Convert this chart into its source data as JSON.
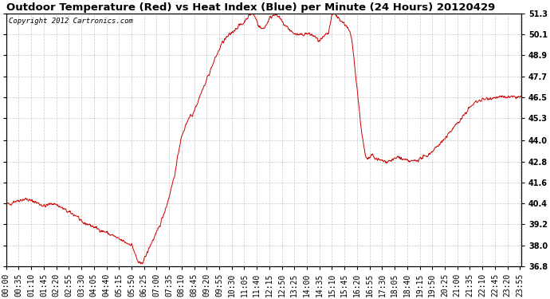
{
  "title": "Outdoor Temperature (Red) vs Heat Index (Blue) per Minute (24 Hours) 20120429",
  "copyright": "Copyright 2012 Cartronics.com",
  "ylim": [
    36.8,
    51.3
  ],
  "yticks": [
    36.8,
    38.0,
    39.2,
    40.4,
    41.6,
    42.8,
    44.0,
    45.3,
    46.5,
    47.7,
    48.9,
    50.1,
    51.3
  ],
  "ytick_labels": [
    "36.8",
    "38.0",
    "39.2",
    "40.4",
    "41.6",
    "42.8",
    "44.0",
    "45.3",
    "46.5",
    "47.7",
    "48.9",
    "50.1",
    "51.3"
  ],
  "line_color_temp": "#cc0000",
  "bg_color": "#ffffff",
  "grid_color": "#b0b0b0",
  "title_fontsize": 9.5,
  "copyright_fontsize": 6.5,
  "tick_fontsize": 7,
  "xtick_interval_minutes": 35,
  "total_minutes": 1440,
  "keypoints": [
    [
      0,
      40.4
    ],
    [
      10,
      40.35
    ],
    [
      20,
      40.5
    ],
    [
      30,
      40.55
    ],
    [
      40,
      40.6
    ],
    [
      55,
      40.65
    ],
    [
      70,
      40.55
    ],
    [
      80,
      40.5
    ],
    [
      90,
      40.4
    ],
    [
      100,
      40.3
    ],
    [
      110,
      40.25
    ],
    [
      120,
      40.35
    ],
    [
      130,
      40.4
    ],
    [
      140,
      40.35
    ],
    [
      150,
      40.2
    ],
    [
      160,
      40.1
    ],
    [
      170,
      39.95
    ],
    [
      180,
      39.85
    ],
    [
      190,
      39.75
    ],
    [
      200,
      39.65
    ],
    [
      210,
      39.3
    ],
    [
      220,
      39.25
    ],
    [
      230,
      39.2
    ],
    [
      240,
      39.1
    ],
    [
      250,
      39.0
    ],
    [
      260,
      38.9
    ],
    [
      270,
      38.8
    ],
    [
      280,
      38.75
    ],
    [
      290,
      38.6
    ],
    [
      300,
      38.55
    ],
    [
      310,
      38.4
    ],
    [
      320,
      38.3
    ],
    [
      330,
      38.2
    ],
    [
      340,
      38.1
    ],
    [
      350,
      38.05
    ],
    [
      355,
      37.8
    ],
    [
      360,
      37.5
    ],
    [
      365,
      37.2
    ],
    [
      370,
      37.0
    ],
    [
      375,
      36.9
    ],
    [
      380,
      37.0
    ],
    [
      385,
      37.2
    ],
    [
      390,
      37.4
    ],
    [
      395,
      37.6
    ],
    [
      400,
      37.9
    ],
    [
      410,
      38.3
    ],
    [
      420,
      38.7
    ],
    [
      430,
      39.2
    ],
    [
      440,
      39.8
    ],
    [
      450,
      40.4
    ],
    [
      460,
      41.2
    ],
    [
      470,
      42.0
    ],
    [
      475,
      42.5
    ],
    [
      480,
      43.2
    ],
    [
      485,
      43.8
    ],
    [
      490,
      44.2
    ],
    [
      495,
      44.5
    ],
    [
      500,
      44.8
    ],
    [
      505,
      45.1
    ],
    [
      510,
      45.3
    ],
    [
      515,
      45.5
    ],
    [
      520,
      45.4
    ],
    [
      525,
      45.8
    ],
    [
      530,
      46.0
    ],
    [
      535,
      46.2
    ],
    [
      540,
      46.5
    ],
    [
      545,
      46.8
    ],
    [
      550,
      47.0
    ],
    [
      555,
      47.2
    ],
    [
      560,
      47.5
    ],
    [
      565,
      47.8
    ],
    [
      570,
      48.0
    ],
    [
      575,
      48.3
    ],
    [
      580,
      48.5
    ],
    [
      585,
      48.8
    ],
    [
      590,
      49.0
    ],
    [
      595,
      49.2
    ],
    [
      600,
      49.5
    ],
    [
      610,
      49.8
    ],
    [
      620,
      50.0
    ],
    [
      630,
      50.2
    ],
    [
      640,
      50.4
    ],
    [
      650,
      50.6
    ],
    [
      660,
      50.7
    ],
    [
      665,
      50.8
    ],
    [
      670,
      51.0
    ],
    [
      675,
      51.1
    ],
    [
      680,
      51.2
    ],
    [
      685,
      51.3
    ],
    [
      690,
      51.25
    ],
    [
      695,
      51.1
    ],
    [
      700,
      50.9
    ],
    [
      705,
      50.6
    ],
    [
      710,
      50.5
    ],
    [
      715,
      50.4
    ],
    [
      720,
      50.5
    ],
    [
      725,
      50.6
    ],
    [
      730,
      50.8
    ],
    [
      735,
      51.0
    ],
    [
      740,
      51.1
    ],
    [
      745,
      51.2
    ],
    [
      750,
      51.3
    ],
    [
      755,
      51.2
    ],
    [
      760,
      51.1
    ],
    [
      765,
      51.0
    ],
    [
      770,
      50.85
    ],
    [
      775,
      50.7
    ],
    [
      780,
      50.6
    ],
    [
      785,
      50.5
    ],
    [
      790,
      50.4
    ],
    [
      795,
      50.3
    ],
    [
      800,
      50.2
    ],
    [
      810,
      50.1
    ],
    [
      820,
      50.05
    ],
    [
      830,
      50.1
    ],
    [
      840,
      50.15
    ],
    [
      850,
      50.1
    ],
    [
      855,
      50.05
    ],
    [
      860,
      50.0
    ],
    [
      865,
      49.9
    ],
    [
      870,
      49.8
    ],
    [
      875,
      49.7
    ],
    [
      880,
      49.8
    ],
    [
      885,
      49.9
    ],
    [
      890,
      50.0
    ],
    [
      895,
      50.1
    ],
    [
      900,
      50.15
    ],
    [
      910,
      51.2
    ],
    [
      915,
      51.3
    ],
    [
      920,
      51.25
    ],
    [
      925,
      51.1
    ],
    [
      930,
      51.0
    ],
    [
      935,
      50.9
    ],
    [
      940,
      50.8
    ],
    [
      945,
      50.7
    ],
    [
      950,
      50.6
    ],
    [
      955,
      50.4
    ],
    [
      960,
      50.2
    ],
    [
      965,
      49.8
    ],
    [
      970,
      49.0
    ],
    [
      975,
      48.0
    ],
    [
      980,
      47.0
    ],
    [
      985,
      46.0
    ],
    [
      990,
      45.0
    ],
    [
      995,
      44.2
    ],
    [
      1000,
      43.5
    ],
    [
      1005,
      43.0
    ],
    [
      1010,
      42.9
    ],
    [
      1015,
      43.0
    ],
    [
      1020,
      43.2
    ],
    [
      1030,
      43.0
    ],
    [
      1040,
      42.9
    ],
    [
      1050,
      42.85
    ],
    [
      1060,
      42.8
    ],
    [
      1070,
      42.85
    ],
    [
      1080,
      42.9
    ],
    [
      1090,
      43.0
    ],
    [
      1095,
      43.1
    ],
    [
      1100,
      43.0
    ],
    [
      1110,
      42.9
    ],
    [
      1120,
      42.85
    ],
    [
      1130,
      42.8
    ],
    [
      1140,
      42.85
    ],
    [
      1150,
      42.9
    ],
    [
      1160,
      43.0
    ],
    [
      1170,
      43.1
    ],
    [
      1180,
      43.2
    ],
    [
      1190,
      43.4
    ],
    [
      1200,
      43.6
    ],
    [
      1210,
      43.8
    ],
    [
      1220,
      44.0
    ],
    [
      1230,
      44.2
    ],
    [
      1240,
      44.5
    ],
    [
      1250,
      44.8
    ],
    [
      1260,
      45.0
    ],
    [
      1270,
      45.2
    ],
    [
      1280,
      45.5
    ],
    [
      1290,
      45.8
    ],
    [
      1300,
      46.0
    ],
    [
      1310,
      46.2
    ],
    [
      1320,
      46.3
    ],
    [
      1330,
      46.35
    ],
    [
      1340,
      46.4
    ],
    [
      1350,
      46.45
    ],
    [
      1360,
      46.45
    ],
    [
      1370,
      46.5
    ],
    [
      1380,
      46.5
    ],
    [
      1390,
      46.5
    ],
    [
      1400,
      46.5
    ],
    [
      1410,
      46.5
    ],
    [
      1420,
      46.5
    ],
    [
      1430,
      46.5
    ],
    [
      1439,
      46.5
    ]
  ]
}
